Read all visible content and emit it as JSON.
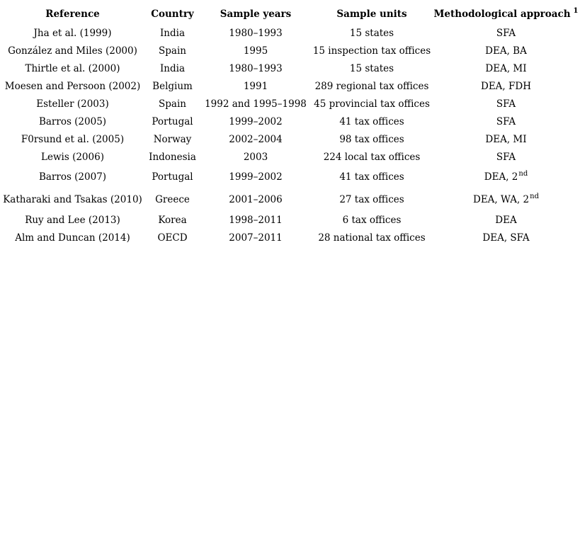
{
  "colors": {
    "background": "#ffffff",
    "text": "#000000"
  },
  "table": {
    "headers": [
      {
        "key": "reference",
        "label": "Reference"
      },
      {
        "key": "country",
        "label": "Country"
      },
      {
        "key": "years",
        "label": "Sample years"
      },
      {
        "key": "units",
        "label": "Sample units"
      },
      {
        "key": "approach",
        "label": "Methodological approach",
        "superscript": "1"
      }
    ],
    "rows": [
      {
        "reference": "Jha et al. (1999)",
        "country": "India",
        "years": "1980–1993",
        "units": "15 states",
        "approach": "SFA"
      },
      {
        "reference": "González and Miles (2000)",
        "country": "Spain",
        "years": "1995",
        "units": "15 inspection tax offices",
        "approach": "DEA, BA"
      },
      {
        "reference": "Thirtle et al. (2000)",
        "country": "India",
        "years": "1980–1993",
        "units": "15 states",
        "approach": "DEA, MI"
      },
      {
        "reference": "Moesen and Persoon (2002)",
        "country": "Belgium",
        "years": "1991",
        "units": "289 regional tax offices",
        "approach": "DEA, FDH"
      },
      {
        "reference": "Esteller (2003)",
        "country": "Spain",
        "years": "1992 and 1995–1998",
        "units": "45 provincial tax offices",
        "approach": "SFA"
      },
      {
        "reference": "Barros (2005)",
        "country": "Portugal",
        "years": "1999–2002",
        "units": "41 tax offices",
        "approach": "SFA"
      },
      {
        "reference": "F0rsund et al. (2005)",
        "country": "Norway",
        "years": "2002–2004",
        "units": "98 tax offices",
        "approach": "DEA, MI"
      },
      {
        "reference": "Lewis (2006)",
        "country": "Indonesia",
        "years": "2003",
        "units": "224 local tax offices",
        "approach": "SFA"
      },
      {
        "reference": "Barros (2007)",
        "country": "Portugal",
        "years": "1999–2002",
        "units": "41 tax offices",
        "approach": "DEA, 2",
        "approach_superscript": "nd"
      },
      {
        "reference": "Katharaki and Tsakas (2010)",
        "country": "Greece",
        "years": "2001–2006",
        "units": "27 tax offices",
        "approach": "DEA, WA, 2",
        "approach_superscript": "nd"
      },
      {
        "reference": "Ruy and Lee (2013)",
        "country": "Korea",
        "years": "1998–2011",
        "units": "6 tax offices",
        "approach": "DEA"
      },
      {
        "reference": "Alm and Duncan (2014)",
        "country": "OECD",
        "years": "2007–2011",
        "units": "28 national tax offices",
        "approach": "DEA, SFA"
      }
    ]
  }
}
